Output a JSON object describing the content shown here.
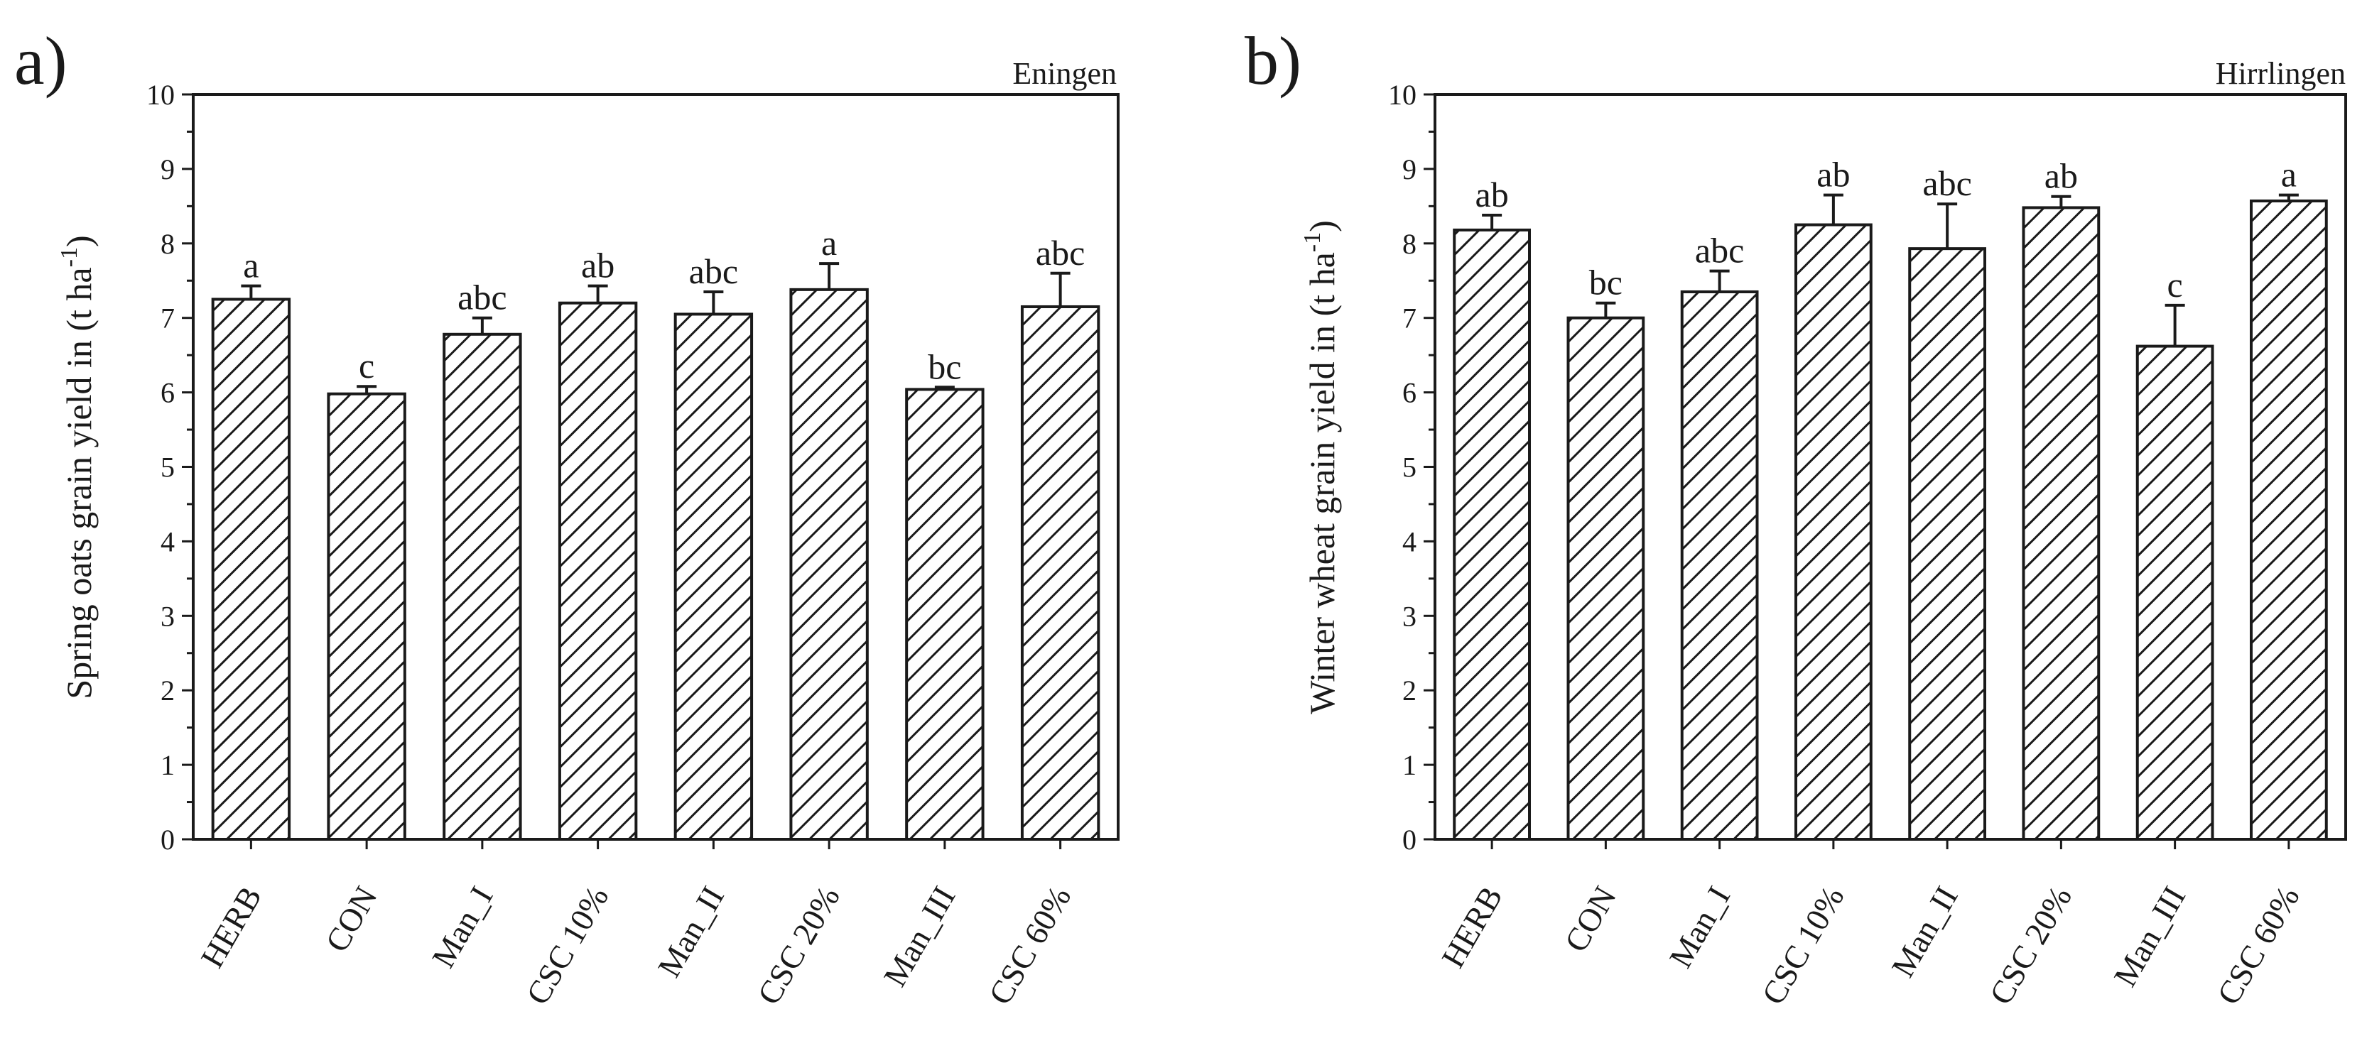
{
  "figure": {
    "background": "#ffffff",
    "ink": "#1a1a1a"
  },
  "chart_data": [
    {
      "type": "bar",
      "panel_label": "a)",
      "site": "Eningen",
      "title": "",
      "xlabel": "",
      "ylabel_main": "Spring oats grain yield in (t ha",
      "ylabel_sup": "-1",
      "ylabel_end": ")",
      "ylim": [
        0,
        10
      ],
      "yticks": [
        "0",
        "1",
        "2",
        "3",
        "4",
        "5",
        "6",
        "7",
        "8",
        "9",
        "10"
      ],
      "grid": false,
      "categories": [
        "HERB",
        "CON",
        "Man_I",
        "CSC 10%",
        "Man_II",
        "CSC 20%",
        "Man_III",
        "CSC 60%"
      ],
      "values": [
        7.25,
        5.98,
        6.78,
        7.2,
        7.05,
        7.38,
        6.04,
        7.15
      ],
      "errors": [
        0.18,
        0.1,
        0.22,
        0.23,
        0.3,
        0.35,
        0.03,
        0.45
      ],
      "letters": [
        "a",
        "c",
        "abc",
        "ab",
        "abc",
        "a",
        "bc",
        "abc"
      ]
    },
    {
      "type": "bar",
      "panel_label": "b)",
      "site": "Hirrlingen",
      "title": "",
      "xlabel": "",
      "ylabel_main": "Winter wheat grain yield in (t ha",
      "ylabel_sup": "-1",
      "ylabel_end": ")",
      "ylim": [
        0,
        10
      ],
      "yticks": [
        "0",
        "1",
        "2",
        "3",
        "4",
        "5",
        "6",
        "7",
        "8",
        "9",
        "10"
      ],
      "grid": false,
      "categories": [
        "HERB",
        "CON",
        "Man_I",
        "CSC 10%",
        "Man_II",
        "CSC 20%",
        "Man_III",
        "CSC 60%"
      ],
      "values": [
        8.18,
        7.0,
        7.35,
        8.25,
        7.93,
        8.48,
        6.62,
        8.57
      ],
      "errors": [
        0.2,
        0.2,
        0.28,
        0.4,
        0.6,
        0.15,
        0.55,
        0.08
      ],
      "letters": [
        "ab",
        "bc",
        "abc",
        "ab",
        "abc",
        "ab",
        "c",
        "a"
      ]
    }
  ]
}
